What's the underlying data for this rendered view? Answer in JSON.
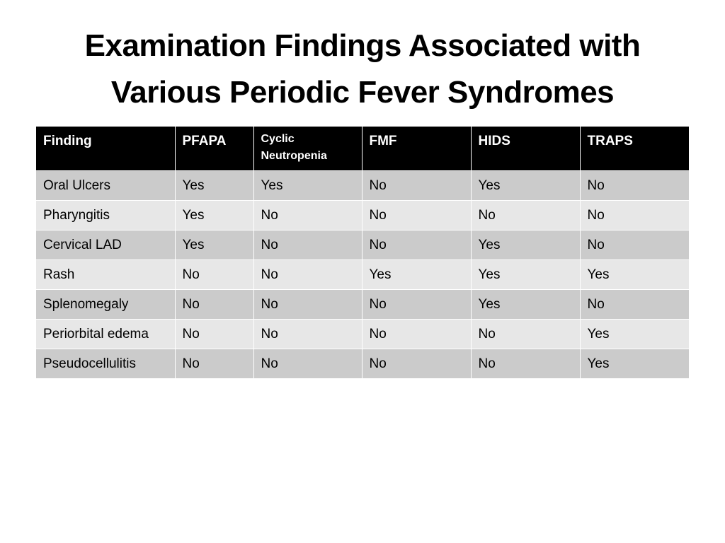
{
  "slide": {
    "title_lines": [
      "Examination Findings Associated with",
      "Various Periodic Fever Syndromes"
    ]
  },
  "table": {
    "headers": [
      "Finding",
      "PFAPA",
      "Cyclic Neutropenia",
      "FMF",
      "HIDS",
      "TRAPS"
    ],
    "rows": [
      [
        "Oral Ulcers",
        "Yes",
        "Yes",
        "No",
        "Yes",
        "No"
      ],
      [
        "Pharyngitis",
        "Yes",
        "No",
        "No",
        "No",
        "No"
      ],
      [
        "Cervical LAD",
        "Yes",
        "No",
        "No",
        "Yes",
        "No"
      ],
      [
        "Rash",
        "No",
        "No",
        "Yes",
        "Yes",
        "Yes"
      ],
      [
        "Splenomegaly",
        "No",
        "No",
        "No",
        "Yes",
        "No"
      ],
      [
        "Periorbital edema",
        "No",
        "No",
        "No",
        "No",
        "Yes"
      ],
      [
        "Pseudocellulitis",
        "No",
        "No",
        "No",
        "No",
        "Yes"
      ]
    ]
  },
  "colors": {
    "header_bg": "#000000",
    "header_text": "#ffffff",
    "row_dark": "#cbcbcb",
    "row_light": "#e7e7e7"
  }
}
